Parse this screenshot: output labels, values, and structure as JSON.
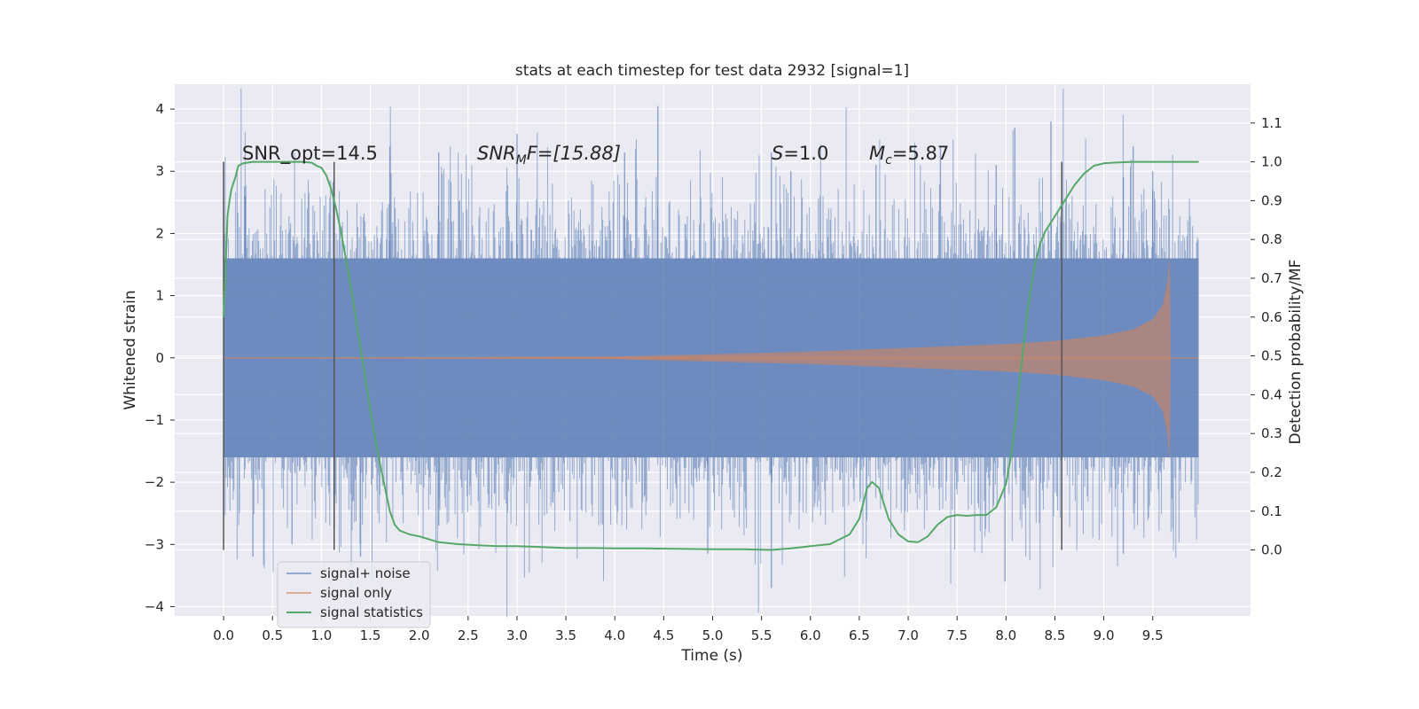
{
  "chart_data": {
    "type": "line",
    "title": "stats at each timestep for test data 2932 [signal=1]",
    "xlabel": "Time (s)",
    "ylabel_left": "Whitened strain",
    "ylabel_right": "Detection probability/MF",
    "xlim": [
      -0.5,
      10.5
    ],
    "ylim_left": [
      -4.15,
      4.4
    ],
    "ylim_right": [
      -0.17,
      1.2
    ],
    "grid": true,
    "legend_placement": "lower-left",
    "x_ticks": [
      "0.0",
      "0.5",
      "1.0",
      "1.5",
      "2.0",
      "2.5",
      "3.0",
      "3.5",
      "4.0",
      "4.5",
      "5.0",
      "5.5",
      "6.0",
      "6.5",
      "7.0",
      "7.5",
      "8.0",
      "8.5",
      "9.0",
      "9.5"
    ],
    "y_ticks_left": [
      "4",
      "3",
      "2",
      "1",
      "0",
      "−1",
      "−2",
      "−3",
      "−4"
    ],
    "y_ticks_right": [
      "1.1",
      "1.0",
      "0.9",
      "0.8",
      "0.7",
      "0.6",
      "0.5",
      "0.4",
      "0.3",
      "0.2",
      "0.1",
      "0.0"
    ],
    "colors": {
      "background": "#eaeaf2",
      "grid": "#ffffff",
      "signal_noise": "#4c72b0",
      "signal_only": "#dd8452",
      "statistics": "#55a868",
      "markers": "#555555"
    },
    "annotations": {
      "snr_opt": "SNR_opt=14.5",
      "snr_mf_base": "SNR",
      "snr_mf_sub": "M",
      "snr_mf_rest": "F=[15.88]",
      "s_var": "S",
      "s_rest": "=1.0",
      "mc_var": "M",
      "mc_sub": "c",
      "mc_rest": "=5.87"
    },
    "vertical_markers_x": [
      0.0,
      1.13,
      8.57
    ],
    "series": [
      {
        "name": "signal+ noise",
        "axis": "left",
        "style": "noise_band",
        "t_start": 0.0,
        "t_end": 9.97,
        "core_amplitude": 1.6,
        "spike_peaks_top": [
          [
            0.22,
            2.6
          ],
          [
            1.7,
            3.4
          ],
          [
            2.2,
            3.3
          ],
          [
            3.0,
            3.6
          ],
          [
            4.1,
            3.3
          ],
          [
            4.44,
            4.05
          ],
          [
            5.6,
            3.3
          ],
          [
            5.8,
            3.0
          ],
          [
            6.67,
            3.1
          ],
          [
            7.33,
            3.4
          ],
          [
            7.9,
            3.1
          ],
          [
            8.09,
            3.7
          ],
          [
            8.46,
            3.8
          ],
          [
            9.2,
            2.9
          ],
          [
            9.3,
            3.4
          ],
          [
            9.5,
            3.0
          ]
        ],
        "spike_peaks_bottom": [
          [
            0.3,
            -3.2
          ],
          [
            0.7,
            -3.0
          ],
          [
            1.4,
            -3.2
          ],
          [
            2.2,
            -2.7
          ],
          [
            4.95,
            -3.15
          ],
          [
            5.6,
            -3.7
          ],
          [
            7.99,
            -3.6
          ],
          [
            9.2,
            -3.15
          ]
        ]
      },
      {
        "name": "signal only",
        "axis": "left",
        "style": "chirp_envelope",
        "envelope": [
          [
            0.0,
            0.0
          ],
          [
            4.0,
            0.02
          ],
          [
            5.0,
            0.06
          ],
          [
            6.0,
            0.1
          ],
          [
            7.0,
            0.16
          ],
          [
            8.0,
            0.22
          ],
          [
            8.5,
            0.27
          ],
          [
            9.0,
            0.36
          ],
          [
            9.3,
            0.46
          ],
          [
            9.5,
            0.62
          ],
          [
            9.6,
            0.85
          ],
          [
            9.65,
            1.2
          ],
          [
            9.675,
            1.65
          ],
          [
            9.685,
            0.0
          ],
          [
            9.97,
            0.0
          ]
        ]
      },
      {
        "name": "signal statistics",
        "axis": "right",
        "style": "line",
        "x": [
          0.0,
          0.02,
          0.04,
          0.06,
          0.08,
          0.12,
          0.15,
          0.2,
          0.3,
          0.4,
          0.5,
          0.6,
          0.7,
          0.8,
          0.9,
          0.95,
          1.0,
          1.05,
          1.1,
          1.15,
          1.2,
          1.3,
          1.4,
          1.5,
          1.6,
          1.7,
          1.75,
          1.8,
          1.9,
          2.0,
          2.2,
          2.4,
          2.6,
          2.8,
          3.0,
          3.2,
          3.5,
          3.8,
          4.0,
          4.3,
          4.6,
          5.0,
          5.3,
          5.6,
          5.8,
          6.0,
          6.2,
          6.4,
          6.5,
          6.58,
          6.63,
          6.7,
          6.8,
          6.9,
          7.0,
          7.1,
          7.2,
          7.3,
          7.4,
          7.5,
          7.6,
          7.7,
          7.8,
          7.9,
          8.0,
          8.05,
          8.1,
          8.15,
          8.2,
          8.25,
          8.3,
          8.35,
          8.4,
          8.45,
          8.5,
          8.6,
          8.7,
          8.8,
          8.9,
          9.0,
          9.1,
          9.3,
          9.5,
          9.7,
          9.97
        ],
        "y": [
          0.6,
          0.72,
          0.86,
          0.9,
          0.93,
          0.96,
          0.99,
          0.996,
          1.0,
          1.0,
          1.0,
          1.0,
          1.0,
          1.0,
          0.998,
          0.99,
          0.985,
          0.965,
          0.93,
          0.88,
          0.82,
          0.68,
          0.52,
          0.36,
          0.22,
          0.1,
          0.065,
          0.05,
          0.04,
          0.035,
          0.02,
          0.015,
          0.012,
          0.01,
          0.01,
          0.008,
          0.005,
          0.005,
          0.004,
          0.004,
          0.003,
          0.002,
          0.002,
          0.0,
          0.004,
          0.01,
          0.015,
          0.04,
          0.08,
          0.16,
          0.175,
          0.16,
          0.08,
          0.04,
          0.022,
          0.02,
          0.035,
          0.065,
          0.085,
          0.09,
          0.088,
          0.09,
          0.09,
          0.11,
          0.17,
          0.24,
          0.34,
          0.46,
          0.57,
          0.67,
          0.74,
          0.79,
          0.82,
          0.84,
          0.86,
          0.9,
          0.94,
          0.97,
          0.99,
          0.996,
          0.998,
          1.0,
          1.0,
          1.0,
          1.0
        ]
      }
    ]
  }
}
